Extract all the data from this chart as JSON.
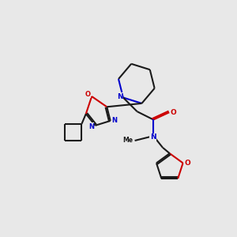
{
  "background_color": "#e8e8e8",
  "bond_color": "#1a1a1a",
  "nitrogen_color": "#0000cc",
  "oxygen_color": "#cc0000",
  "line_width": 1.5,
  "dbo": 0.06,
  "xlim": [
    0,
    10
  ],
  "ylim": [
    0,
    10
  ]
}
